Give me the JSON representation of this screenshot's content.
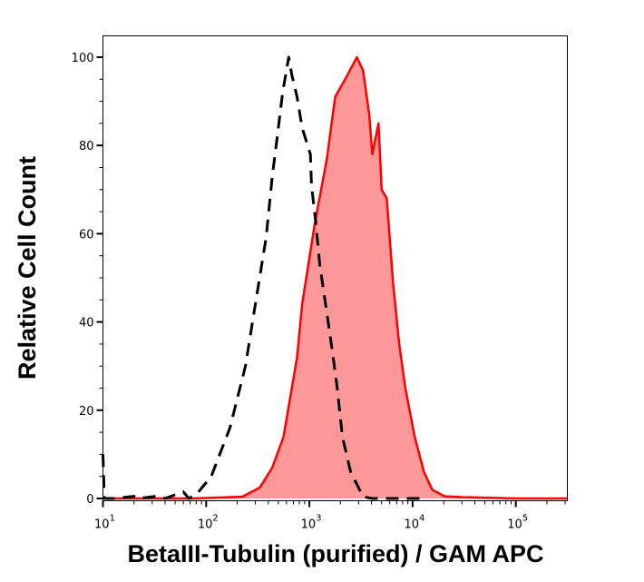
{
  "chart_data": {
    "type": "area",
    "title": "",
    "xlabel": "BetaIII-Tubulin (purified) / GAM APC",
    "ylabel": "Relative Cell Count",
    "xscale": "log",
    "xlim": [
      10,
      316228
    ],
    "ylim": [
      -0.4,
      105
    ],
    "grid": false,
    "legend": "none",
    "x_ticks": [
      {
        "value": 10,
        "base": "10",
        "exp": "1"
      },
      {
        "value": 100,
        "base": "10",
        "exp": "2"
      },
      {
        "value": 1000,
        "base": "10",
        "exp": "3"
      },
      {
        "value": 10000,
        "base": "10",
        "exp": "4"
      },
      {
        "value": 100000,
        "base": "10",
        "exp": "5"
      }
    ],
    "y_ticks": [
      0,
      20,
      40,
      60,
      80,
      100
    ],
    "series": [
      {
        "style": "filled-solid",
        "color": "#ff0000",
        "fill": "#ff9999",
        "x": [
          10,
          20,
          40,
          74,
          224,
          331,
          437,
          562,
          759,
          851,
          1122,
          1479,
          1778,
          2344,
          2884,
          3311,
          3802,
          4074,
          4677,
          5012,
          5623,
          6457,
          7413,
          8511,
          10471,
          12882,
          15488,
          20417,
          30000,
          100000,
          316228
        ],
        "y": [
          0,
          0,
          0,
          0,
          0.4,
          2.5,
          7,
          14,
          32,
          44,
          62,
          77,
          91,
          96,
          100,
          97,
          87,
          78,
          85,
          70,
          68,
          49,
          35,
          25,
          14,
          6,
          2,
          0.5,
          0.3,
          0,
          0
        ]
      },
      {
        "style": "dashed",
        "color": "#000000",
        "x": [
          10,
          10.3,
          13,
          20,
          22,
          35,
          40,
          60,
          68,
          81,
          112,
          170,
          240,
          309,
          380,
          437,
          501,
          550,
          631,
          676,
          759,
          851,
          1023,
          1047,
          1148,
          1259,
          1479,
          1698,
          1862,
          2089,
          2512,
          3311,
          4074,
          10000,
          12000
        ],
        "y": [
          10,
          0,
          0,
          0.5,
          0,
          0.6,
          0,
          1.5,
          0,
          1,
          5,
          16,
          30,
          46,
          59,
          73,
          84,
          92,
          100,
          96,
          91,
          84,
          78,
          71,
          63,
          53,
          42,
          32,
          25,
          14,
          6,
          0.4,
          0,
          0,
          0
        ]
      }
    ]
  }
}
